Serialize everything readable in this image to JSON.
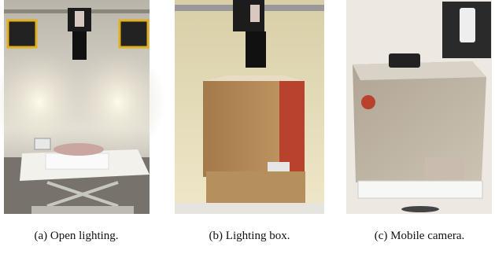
{
  "figures": [
    {
      "caption": "(a) Open lighting."
    },
    {
      "caption": "(b) Lighting box."
    },
    {
      "caption": "(c) Mobile camera."
    }
  ]
}
